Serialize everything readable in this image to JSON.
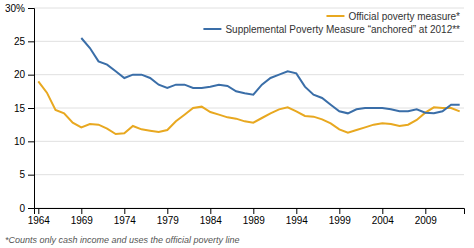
{
  "chart_data": {
    "type": "line",
    "footnote": "*Counts only cash income and uses the official poverty line",
    "x": [
      1964,
      1965,
      1966,
      1967,
      1968,
      1969,
      1970,
      1971,
      1972,
      1973,
      1974,
      1975,
      1976,
      1977,
      1978,
      1979,
      1980,
      1981,
      1982,
      1983,
      1984,
      1985,
      1986,
      1987,
      1988,
      1989,
      1990,
      1991,
      1992,
      1993,
      1994,
      1995,
      1996,
      1997,
      1998,
      1999,
      2000,
      2001,
      2002,
      2003,
      2004,
      2005,
      2006,
      2007,
      2008,
      2009,
      2010,
      2011,
      2012,
      2013
    ],
    "series": [
      {
        "name": "Official poverty measure*",
        "color": "#E8A820",
        "values": [
          19.0,
          17.3,
          14.7,
          14.2,
          12.8,
          12.1,
          12.6,
          12.5,
          11.9,
          11.1,
          11.2,
          12.3,
          11.8,
          11.6,
          11.4,
          11.7,
          13.0,
          14.0,
          15.0,
          15.2,
          14.4,
          14.0,
          13.6,
          13.4,
          13.0,
          12.8,
          13.5,
          14.2,
          14.8,
          15.1,
          14.5,
          13.8,
          13.7,
          13.3,
          12.7,
          11.8,
          11.3,
          11.7,
          12.1,
          12.5,
          12.7,
          12.6,
          12.3,
          12.5,
          13.2,
          14.3,
          15.1,
          15.0,
          15.0,
          14.5
        ]
      },
      {
        "name": "Supplemental Poverty Measure “anchored” at 2012**",
        "color": "#3A6EA8",
        "values": [
          null,
          null,
          null,
          null,
          null,
          25.5,
          24.0,
          22.0,
          21.5,
          20.5,
          19.5,
          20.0,
          20.0,
          19.5,
          18.5,
          18.0,
          18.5,
          18.5,
          18.0,
          18.0,
          18.2,
          18.5,
          18.3,
          17.5,
          17.2,
          17.0,
          18.5,
          19.5,
          20.0,
          20.5,
          20.2,
          18.2,
          17.0,
          16.5,
          15.5,
          14.5,
          14.2,
          14.8,
          15.0,
          15.0,
          15.0,
          14.8,
          14.5,
          14.5,
          14.8,
          14.3,
          14.2,
          14.5,
          15.5,
          15.5
        ]
      }
    ],
    "xlim": [
      1963.5,
      2013.5
    ],
    "xticks": [
      1964,
      1969,
      1974,
      1979,
      1984,
      1989,
      1994,
      1999,
      2004,
      2009
    ],
    "ylim": [
      0,
      30
    ],
    "yticks": [
      0,
      5,
      10,
      15,
      20,
      25,
      {
        "value": 30,
        "label": "30%"
      }
    ],
    "grid": true,
    "legend": "top-right"
  }
}
